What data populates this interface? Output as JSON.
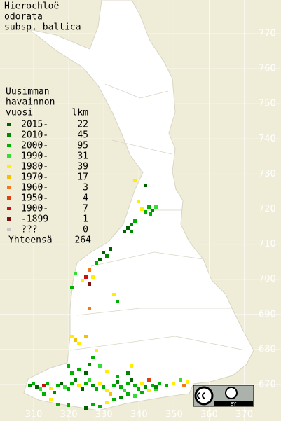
{
  "map": {
    "title": [
      "Hierochloë",
      "odorata",
      "subsp. baltica"
    ],
    "legend": {
      "header": [
        "Uusimman",
        "havainnon"
      ],
      "year_heading": "vuosi",
      "count_heading": "lkm",
      "rows": [
        {
          "label": "2015-",
          "count": 22,
          "color": "#005f00"
        },
        {
          "label": "2010-",
          "count": 45,
          "color": "#008800"
        },
        {
          "label": "2000-",
          "count": 95,
          "color": "#00b000"
        },
        {
          "label": "1990-",
          "count": 31,
          "color": "#33dd33"
        },
        {
          "label": "1980-",
          "count": 39,
          "color": "#ffee00"
        },
        {
          "label": "1970-",
          "count": 17,
          "color": "#f5c000"
        },
        {
          "label": "1960-",
          "count": 3,
          "color": "#f07818"
        },
        {
          "label": "1950-",
          "count": 4,
          "color": "#e04010"
        },
        {
          "label": "1900-",
          "count": 7,
          "color": "#c81010"
        },
        {
          "label": "-1899",
          "count": 1,
          "color": "#801010"
        },
        {
          "label": "???",
          "count": 0,
          "color": "#c8c8c8"
        }
      ],
      "total_label": "Yhteensä",
      "total": 264
    },
    "northing_labels": [
      770,
      760,
      750,
      740,
      730,
      720,
      710,
      700,
      690,
      680,
      670
    ],
    "easting_labels": [
      310,
      320,
      330,
      340,
      350,
      360,
      370
    ],
    "license": "BY"
  }
}
